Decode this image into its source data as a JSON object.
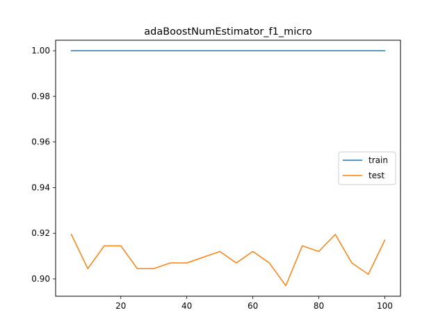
{
  "chart_data": {
    "type": "line",
    "title": "adaBoostNumEstimator_f1_micro",
    "xlabel": "",
    "ylabel": "",
    "xlim": [
      0.25,
      104.75
    ],
    "ylim": [
      0.8924,
      1.0046
    ],
    "x_ticks": [
      20,
      40,
      60,
      80,
      100
    ],
    "x_tick_labels": [
      "20",
      "40",
      "60",
      "80",
      "100"
    ],
    "y_ticks": [
      0.9,
      0.92,
      0.94,
      0.96,
      0.98,
      1.0
    ],
    "y_tick_labels": [
      "0.90",
      "0.92",
      "0.94",
      "0.96",
      "0.98",
      "1.00"
    ],
    "grid": false,
    "legend_position": "center-right",
    "x": [
      5,
      10,
      15,
      20,
      25,
      30,
      35,
      40,
      45,
      50,
      55,
      60,
      65,
      70,
      75,
      80,
      85,
      90,
      95,
      100
    ],
    "series": [
      {
        "name": "train",
        "color": "#1f77b4",
        "values": [
          1.0,
          1.0,
          1.0,
          1.0,
          1.0,
          1.0,
          1.0,
          1.0,
          1.0,
          1.0,
          1.0,
          1.0,
          1.0,
          1.0,
          1.0,
          1.0,
          1.0,
          1.0,
          1.0,
          1.0
        ]
      },
      {
        "name": "test",
        "color": "#ff7f0e",
        "values": [
          0.9195,
          0.9045,
          0.9145,
          0.9145,
          0.9045,
          0.9045,
          0.907,
          0.907,
          0.9095,
          0.912,
          0.907,
          0.912,
          0.907,
          0.897,
          0.9145,
          0.912,
          0.9195,
          0.907,
          0.902,
          0.917
        ]
      }
    ]
  }
}
